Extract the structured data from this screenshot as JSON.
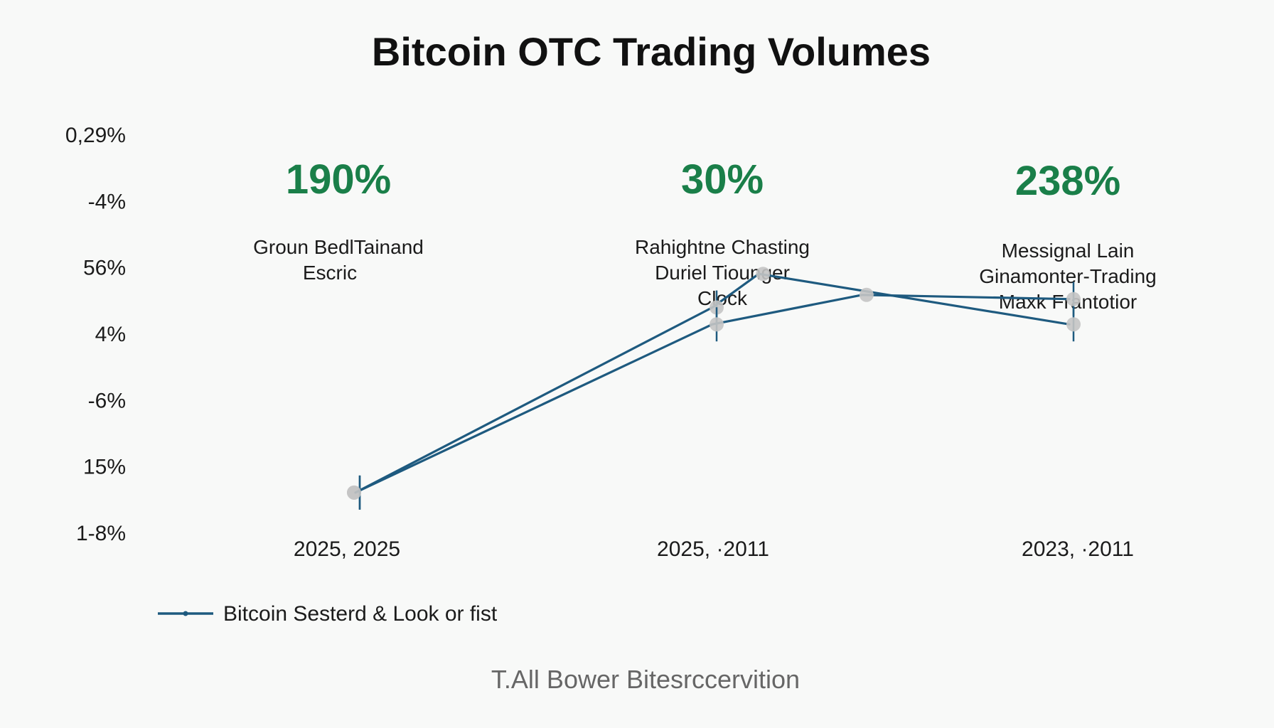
{
  "colors": {
    "background": "#f8f9f8",
    "line": "#1e5a7f",
    "highlight": "#1a7f49",
    "text": "#1b1b1b",
    "muted_text": "#666666",
    "marker": "#c4c4c4"
  },
  "chart_data": {
    "type": "line",
    "title": "Bitcoin OTC Trading Volumes",
    "y_tick_labels": [
      "0,29%",
      "-4%",
      "56%",
      "4%",
      "-6%",
      "15%",
      "1-8%"
    ],
    "categories": [
      "2025, 2025",
      "2025, ·2011",
      "2023, ·2011"
    ],
    "annotations": [
      {
        "value_label": "190%",
        "lines": [
          "Groun BedlTainand",
          "Escric"
        ]
      },
      {
        "value_label": "30%",
        "lines": [
          "Rahightne Chasting",
          "Duriel Tiounger",
          "Clock"
        ]
      },
      {
        "value_label": "238%",
        "lines": [
          "Messignal Lain",
          "Ginamonter-Trading",
          "Maxk Frantotior"
        ]
      }
    ],
    "series": [
      {
        "name": "Bitcoin Sesterd & Look or fist",
        "x": [
          0,
          1,
          1.13,
          2
        ],
        "y": [
          1.35,
          3.55,
          3.95,
          3.35
        ]
      },
      {
        "x": [
          0,
          1,
          1.42,
          2
        ],
        "y": [
          1.35,
          3.35,
          3.7,
          3.65
        ]
      }
    ],
    "ylim": [
      0.85,
      5.6
    ],
    "grid": false,
    "legend_position": "bottom-left",
    "footer": "T.All Bower Bitesrccervition"
  }
}
